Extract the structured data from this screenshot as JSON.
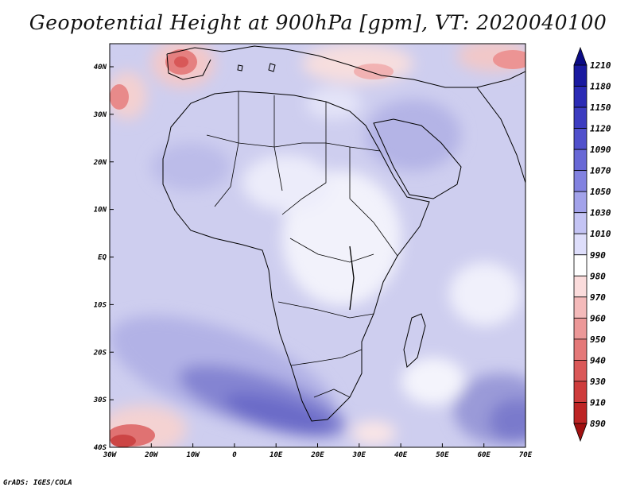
{
  "title": "Geopotential Height at 900hPa [gpm], VT: 2020040100",
  "footer": "GrADS: IGES/COLA",
  "x_ticks": [
    "30W",
    "20W",
    "10W",
    "0",
    "10E",
    "20E",
    "30E",
    "40E",
    "50E",
    "60E",
    "70E"
  ],
  "y_ticks": [
    "40N",
    "30N",
    "20N",
    "10N",
    "EQ",
    "10S",
    "20S",
    "30S",
    "40S"
  ],
  "colorbar": {
    "levels": [
      "1210",
      "1180",
      "1150",
      "1120",
      "1090",
      "1070",
      "1050",
      "1030",
      "1010",
      "990",
      "980",
      "970",
      "960",
      "950",
      "940",
      "930",
      "910",
      "890"
    ],
    "colors": [
      "#0b0b85",
      "#1a1aa0",
      "#2b2bb5",
      "#3c3cc0",
      "#5050cc",
      "#6868d6",
      "#8282e0",
      "#a2a2ea",
      "#c4c4f4",
      "#dedefb",
      "#ffffff",
      "#fbdcdc",
      "#f4baba",
      "#ec9898",
      "#e47878",
      "#da5858",
      "#ce3c3c",
      "#bd2424",
      "#a01010"
    ]
  }
}
